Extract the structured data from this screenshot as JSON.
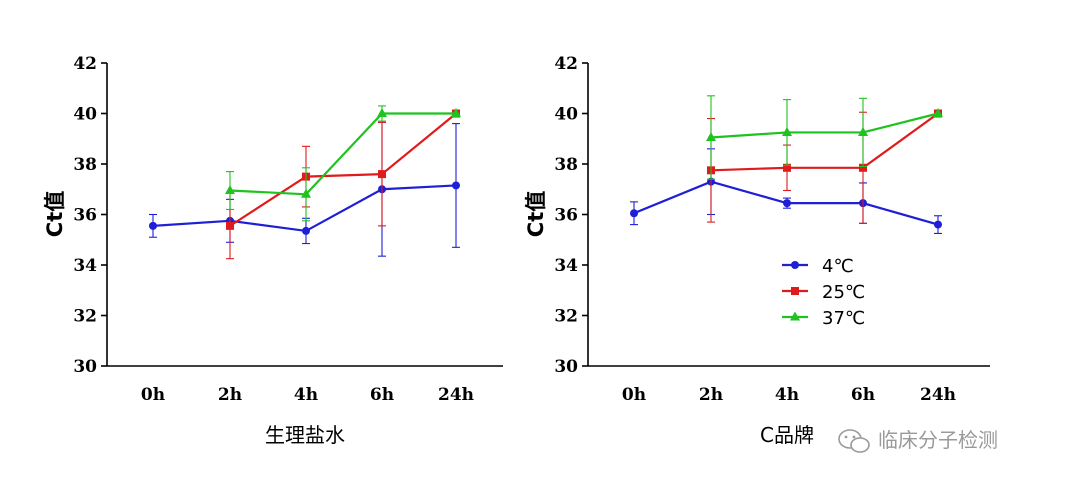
{
  "watermark": "临床分子检测",
  "colors": {
    "s4": "#1f1fd6",
    "s25": "#e01b1b",
    "s37": "#1fc21f",
    "axis": "#000000"
  },
  "chart_data": [
    {
      "type": "line",
      "categories": [
        "0h",
        "2h",
        "4h",
        "6h",
        "24h"
      ],
      "xlabel": "生理盐水",
      "ylabel": "Ct值",
      "ylim": [
        30,
        42
      ],
      "yticks": [
        30,
        32,
        34,
        36,
        38,
        40,
        42
      ],
      "series": [
        {
          "name": "4℃",
          "key": "s4",
          "marker": "circle",
          "values": [
            35.55,
            35.75,
            35.35,
            37.0,
            37.15
          ],
          "errors": [
            0.45,
            0.85,
            0.5,
            2.65,
            2.45
          ]
        },
        {
          "name": "25℃",
          "key": "s25",
          "marker": "square",
          "values": [
            null,
            35.55,
            37.5,
            37.6,
            40.0
          ],
          "errors": [
            null,
            1.3,
            1.2,
            2.05,
            0
          ]
        },
        {
          "name": "37℃",
          "key": "s37",
          "marker": "triangle",
          "values": [
            null,
            36.95,
            36.8,
            40.0,
            40.0
          ],
          "errors": [
            null,
            0.75,
            1.05,
            0.3,
            0
          ]
        }
      ]
    },
    {
      "type": "line",
      "categories": [
        "0h",
        "2h",
        "4h",
        "6h",
        "24h"
      ],
      "xlabel": "C品牌",
      "ylabel": "Ct值",
      "ylim": [
        30,
        42
      ],
      "yticks": [
        30,
        32,
        34,
        36,
        38,
        40,
        42
      ],
      "legend": {
        "position": "center-right",
        "entries": [
          "4℃",
          "25℃",
          "37℃"
        ]
      },
      "series": [
        {
          "name": "4℃",
          "key": "s4",
          "marker": "circle",
          "values": [
            36.05,
            37.3,
            36.45,
            36.45,
            35.6
          ],
          "errors": [
            0.45,
            1.3,
            0.2,
            0.8,
            0.35
          ]
        },
        {
          "name": "25℃",
          "key": "s25",
          "marker": "square",
          "values": [
            null,
            37.75,
            37.85,
            37.85,
            40.0
          ],
          "errors": [
            null,
            2.05,
            0.9,
            2.2,
            0
          ]
        },
        {
          "name": "37℃",
          "key": "s37",
          "marker": "triangle",
          "values": [
            null,
            39.05,
            39.25,
            39.25,
            40.0
          ],
          "errors": [
            null,
            1.65,
            1.3,
            1.35,
            0
          ]
        }
      ]
    }
  ]
}
